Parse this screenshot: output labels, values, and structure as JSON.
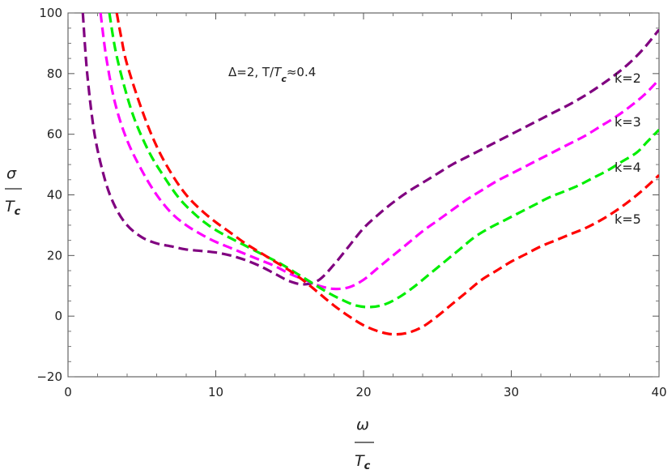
{
  "chart_data": {
    "type": "line",
    "title": "",
    "annotation": {
      "prefix": "Δ=2,  T/",
      "italic": "T",
      "sub": "c",
      "suffix": "≈0.4"
    },
    "xlabel": {
      "top": "ω",
      "bottom_main": "T",
      "bottom_sub": "c"
    },
    "ylabel": {
      "top": "σ",
      "bottom_main": "T",
      "bottom_sub": "c"
    },
    "xlim": [
      0,
      40
    ],
    "ylim": [
      -20,
      100
    ],
    "x_ticks": [
      0,
      10,
      20,
      30,
      40
    ],
    "y_ticks": [
      -20,
      0,
      20,
      40,
      60,
      80,
      100
    ],
    "grid": false,
    "series": [
      {
        "name": "k=2",
        "color": "#800080",
        "points": [
          [
            1.0,
            100
          ],
          [
            1.3,
            80
          ],
          [
            1.8,
            60
          ],
          [
            2.5,
            45
          ],
          [
            3.2,
            36
          ],
          [
            4.0,
            30
          ],
          [
            5,
            26
          ],
          [
            6,
            24
          ],
          [
            7,
            23
          ],
          [
            8,
            22
          ],
          [
            9,
            21.5
          ],
          [
            10,
            21
          ],
          [
            11,
            20
          ],
          [
            12,
            18.5
          ],
          [
            13,
            16.5
          ],
          [
            14,
            14
          ],
          [
            15,
            11.5
          ],
          [
            16,
            10.5
          ],
          [
            17,
            12
          ],
          [
            18,
            17
          ],
          [
            19,
            23
          ],
          [
            20,
            29
          ],
          [
            21,
            33.5
          ],
          [
            22,
            37.5
          ],
          [
            23,
            41
          ],
          [
            24,
            44
          ],
          [
            25,
            47
          ],
          [
            26,
            50
          ],
          [
            27,
            52.5
          ],
          [
            28,
            55
          ],
          [
            29,
            57.5
          ],
          [
            30,
            60
          ],
          [
            31,
            62.5
          ],
          [
            32,
            65
          ],
          [
            33,
            67.5
          ],
          [
            34,
            70
          ],
          [
            35,
            72.8
          ],
          [
            36,
            76
          ],
          [
            37,
            79.5
          ],
          [
            38,
            83.5
          ],
          [
            39,
            88.5
          ],
          [
            40,
            94.5
          ]
        ]
      },
      {
        "name": "k=3",
        "color": "#ff00ff",
        "points": [
          [
            2.2,
            100
          ],
          [
            2.6,
            85
          ],
          [
            3.2,
            70
          ],
          [
            4,
            58
          ],
          [
            5,
            48
          ],
          [
            6,
            40
          ],
          [
            7,
            34
          ],
          [
            8,
            30
          ],
          [
            9,
            27
          ],
          [
            10,
            24.5
          ],
          [
            11,
            22.5
          ],
          [
            12,
            20.5
          ],
          [
            13,
            18.5
          ],
          [
            14,
            16.5
          ],
          [
            15,
            14
          ],
          [
            16,
            12
          ],
          [
            17,
            10
          ],
          [
            18,
            9
          ],
          [
            19,
            9.5
          ],
          [
            20,
            12
          ],
          [
            21,
            16
          ],
          [
            22,
            20
          ],
          [
            23,
            24
          ],
          [
            24,
            28
          ],
          [
            25,
            31.5
          ],
          [
            26,
            35
          ],
          [
            27,
            38.5
          ],
          [
            28,
            41.5
          ],
          [
            29,
            44.5
          ],
          [
            30,
            47
          ],
          [
            31,
            49.5
          ],
          [
            32,
            52
          ],
          [
            33,
            54.5
          ],
          [
            34,
            57
          ],
          [
            35,
            59.5
          ],
          [
            36,
            62.5
          ],
          [
            37,
            65.5
          ],
          [
            38,
            69
          ],
          [
            39,
            73
          ],
          [
            40,
            78
          ]
        ]
      },
      {
        "name": "k=4",
        "color": "#00ee00",
        "points": [
          [
            2.8,
            100
          ],
          [
            3.2,
            88
          ],
          [
            3.8,
            76
          ],
          [
            4.5,
            65
          ],
          [
            5.5,
            54
          ],
          [
            6.5,
            46
          ],
          [
            7.5,
            39
          ],
          [
            8.5,
            34
          ],
          [
            9.5,
            30
          ],
          [
            10.5,
            27
          ],
          [
            11.5,
            24.5
          ],
          [
            12.5,
            22
          ],
          [
            13.5,
            19.5
          ],
          [
            14.5,
            17
          ],
          [
            15.5,
            14
          ],
          [
            16.5,
            11
          ],
          [
            17.5,
            8
          ],
          [
            18.5,
            5.5
          ],
          [
            19.5,
            3.5
          ],
          [
            20.5,
            3
          ],
          [
            21.5,
            4
          ],
          [
            22.5,
            6.5
          ],
          [
            23.5,
            10
          ],
          [
            24.5,
            14
          ],
          [
            25.5,
            18
          ],
          [
            26.5,
            22
          ],
          [
            27.5,
            26
          ],
          [
            28.5,
            29
          ],
          [
            29.5,
            31.5
          ],
          [
            30.5,
            34
          ],
          [
            31.5,
            36.5
          ],
          [
            32.5,
            39
          ],
          [
            33.5,
            41
          ],
          [
            34.5,
            43
          ],
          [
            35.5,
            45.5
          ],
          [
            36.5,
            48
          ],
          [
            37.5,
            51
          ],
          [
            38.5,
            54
          ],
          [
            39.2,
            57.5
          ],
          [
            40,
            61.5
          ]
        ]
      },
      {
        "name": "k=5",
        "color": "#ff0000",
        "points": [
          [
            3.3,
            100
          ],
          [
            3.6,
            92
          ],
          [
            4,
            83
          ],
          [
            5,
            68
          ],
          [
            6,
            56
          ],
          [
            7,
            47
          ],
          [
            8,
            40
          ],
          [
            9,
            35
          ],
          [
            10,
            31
          ],
          [
            11,
            27.5
          ],
          [
            12,
            24
          ],
          [
            13,
            21
          ],
          [
            14,
            18
          ],
          [
            15,
            15
          ],
          [
            16,
            11.5
          ],
          [
            17,
            7.5
          ],
          [
            18,
            3.5
          ],
          [
            19,
            0
          ],
          [
            20,
            -3
          ],
          [
            21,
            -5
          ],
          [
            22,
            -6
          ],
          [
            23,
            -5.5
          ],
          [
            24,
            -3.5
          ],
          [
            25,
            0
          ],
          [
            26,
            4
          ],
          [
            27,
            8
          ],
          [
            28,
            12
          ],
          [
            29,
            15
          ],
          [
            30,
            18
          ],
          [
            31,
            20.5
          ],
          [
            32,
            23
          ],
          [
            33,
            25
          ],
          [
            34,
            27
          ],
          [
            35,
            29
          ],
          [
            36,
            31.5
          ],
          [
            37,
            34.5
          ],
          [
            38,
            38
          ],
          [
            39,
            42
          ],
          [
            40,
            46.5
          ]
        ]
      }
    ]
  }
}
